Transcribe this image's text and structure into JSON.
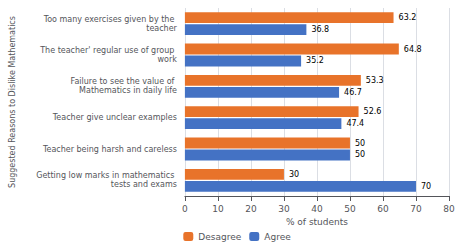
{
  "chart_data": {
    "type": "bar",
    "orientation": "horizontal",
    "categories": [
      "Too many exercises given by the teacher",
      "The teacher' regular use of group work",
      "Failure to see the value of Mathematics in daily life",
      "Teacher give unclear examples",
      "Teacher being harsh and careless",
      "Getting low marks in mathematics tests and exams"
    ],
    "series": [
      {
        "name": "Desagree",
        "color": "#E8732A",
        "values": [
          63.2,
          64.8,
          53.3,
          52.6,
          50,
          30
        ]
      },
      {
        "name": "Agree",
        "color": "#4472C4",
        "values": [
          36.8,
          35.2,
          46.7,
          47.4,
          50,
          70
        ]
      }
    ],
    "xlabel": "% of students",
    "ylabel": "Suggested Reasons to Dislike Mathematics",
    "xlim": [
      0,
      80
    ],
    "xticks": [
      0,
      10,
      20,
      30,
      40,
      50,
      60,
      70,
      80
    ],
    "data_labels": true,
    "grid": true,
    "legend": "bottom"
  }
}
